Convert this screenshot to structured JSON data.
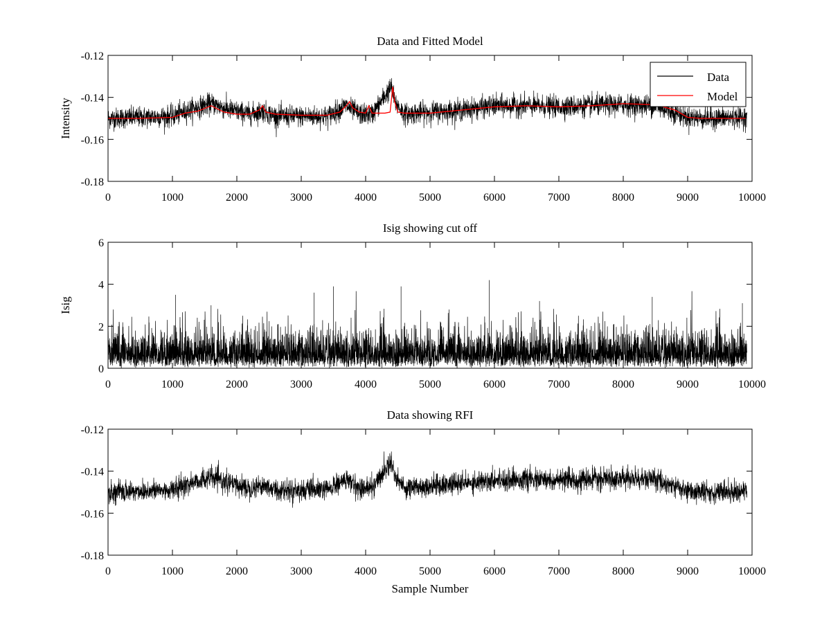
{
  "chart_data": [
    {
      "type": "line",
      "title": "Data and Fitted Model",
      "xlabel": "",
      "ylabel": "Intensity",
      "xlim": [
        0,
        10000
      ],
      "ylim": [
        -0.18,
        -0.12
      ],
      "xticks": [
        "0",
        "1000",
        "2000",
        "3000",
        "4000",
        "5000",
        "6000",
        "7000",
        "8000",
        "9000",
        "10000"
      ],
      "yticks": [
        "-0.12",
        "-0.14",
        "-0.16",
        "-0.18"
      ],
      "legend": {
        "position": "top-right",
        "entries": [
          "Data",
          "Model"
        ]
      },
      "grid": false,
      "series": [
        {
          "name": "Data",
          "color": "#000000",
          "x": [
            0,
            500,
            1000,
            1300,
            1600,
            1900,
            2200,
            2400,
            2600,
            3000,
            3400,
            3700,
            3900,
            4100,
            4400,
            4450,
            4600,
            5000,
            5500,
            6000,
            6500,
            7000,
            7500,
            8000,
            8500,
            9000,
            9300,
            9900
          ],
          "y": [
            -0.15,
            -0.1495,
            -0.149,
            -0.1455,
            -0.143,
            -0.146,
            -0.148,
            -0.1465,
            -0.149,
            -0.149,
            -0.149,
            -0.144,
            -0.148,
            -0.148,
            -0.135,
            -0.142,
            -0.148,
            -0.147,
            -0.146,
            -0.144,
            -0.144,
            -0.1445,
            -0.144,
            -0.1435,
            -0.144,
            -0.1495,
            -0.15,
            -0.1495
          ],
          "noise": 0.0045
        },
        {
          "name": "Model",
          "color": "#ff0000",
          "x": [
            0,
            500,
            1000,
            1200,
            1400,
            1600,
            1800,
            2000,
            2200,
            2350,
            2400,
            2450,
            2600,
            3000,
            3400,
            3600,
            3700,
            3750,
            3800,
            3900,
            4000,
            4050,
            4100,
            4150,
            4200,
            4300,
            4380,
            4420,
            4450,
            4500,
            4600,
            5000,
            5500,
            6000,
            6500,
            7000,
            7500,
            8000,
            8500,
            8800,
            9000,
            9200,
            9500,
            9900
          ],
          "y": [
            -0.15,
            -0.15,
            -0.1495,
            -0.1475,
            -0.1465,
            -0.144,
            -0.147,
            -0.148,
            -0.148,
            -0.146,
            -0.144,
            -0.147,
            -0.148,
            -0.1485,
            -0.1485,
            -0.147,
            -0.144,
            -0.142,
            -0.145,
            -0.147,
            -0.1475,
            -0.144,
            -0.1475,
            -0.1475,
            -0.1475,
            -0.1475,
            -0.147,
            -0.135,
            -0.142,
            -0.147,
            -0.1475,
            -0.1475,
            -0.146,
            -0.1445,
            -0.144,
            -0.1445,
            -0.144,
            -0.143,
            -0.1435,
            -0.146,
            -0.1495,
            -0.15,
            -0.15,
            -0.15
          ]
        }
      ]
    },
    {
      "type": "line",
      "title": "Isig showing cut off",
      "xlabel": "",
      "ylabel": "Isig",
      "xlim": [
        0,
        10000
      ],
      "ylim": [
        0,
        6
      ],
      "xticks": [
        "0",
        "1000",
        "2000",
        "3000",
        "4000",
        "5000",
        "6000",
        "7000",
        "8000",
        "9000",
        "10000"
      ],
      "yticks": [
        "0",
        "2",
        "4",
        "6"
      ],
      "grid": false,
      "series": [
        {
          "color": "#000000",
          "typical_max": 1.9,
          "spikes": [
            {
              "x": 1050,
              "y": 3.5
            },
            {
              "x": 1600,
              "y": 3.0
            },
            {
              "x": 3200,
              "y": 3.6
            },
            {
              "x": 3500,
              "y": 3.9
            },
            {
              "x": 4550,
              "y": 3.9
            },
            {
              "x": 5920,
              "y": 4.2
            },
            {
              "x": 6700,
              "y": 3.2
            },
            {
              "x": 8450,
              "y": 3.4
            },
            {
              "x": 9850,
              "y": 3.1
            }
          ]
        }
      ]
    },
    {
      "type": "line",
      "title": "Data showing RFI",
      "xlabel": "Sample Number",
      "ylabel": "",
      "xlim": [
        0,
        10000
      ],
      "ylim": [
        -0.18,
        -0.12
      ],
      "xticks": [
        "0",
        "1000",
        "2000",
        "3000",
        "4000",
        "5000",
        "6000",
        "7000",
        "8000",
        "9000",
        "10000"
      ],
      "yticks": [
        "-0.12",
        "-0.14",
        "-0.16",
        "-0.18"
      ],
      "grid": false,
      "series": [
        {
          "color": "#000000",
          "x": [
            0,
            500,
            1000,
            1300,
            1600,
            1900,
            2200,
            2400,
            2600,
            3000,
            3400,
            3700,
            3900,
            4100,
            4400,
            4450,
            4600,
            5000,
            5500,
            6000,
            6500,
            7000,
            7500,
            8000,
            8500,
            9000,
            9300,
            9900
          ],
          "y": [
            -0.15,
            -0.1495,
            -0.149,
            -0.1455,
            -0.143,
            -0.146,
            -0.148,
            -0.1465,
            -0.149,
            -0.149,
            -0.149,
            -0.144,
            -0.148,
            -0.148,
            -0.135,
            -0.142,
            -0.148,
            -0.147,
            -0.146,
            -0.144,
            -0.144,
            -0.1445,
            -0.144,
            -0.1435,
            -0.144,
            -0.1495,
            -0.15,
            -0.1495
          ],
          "noise": 0.0045
        }
      ]
    }
  ]
}
